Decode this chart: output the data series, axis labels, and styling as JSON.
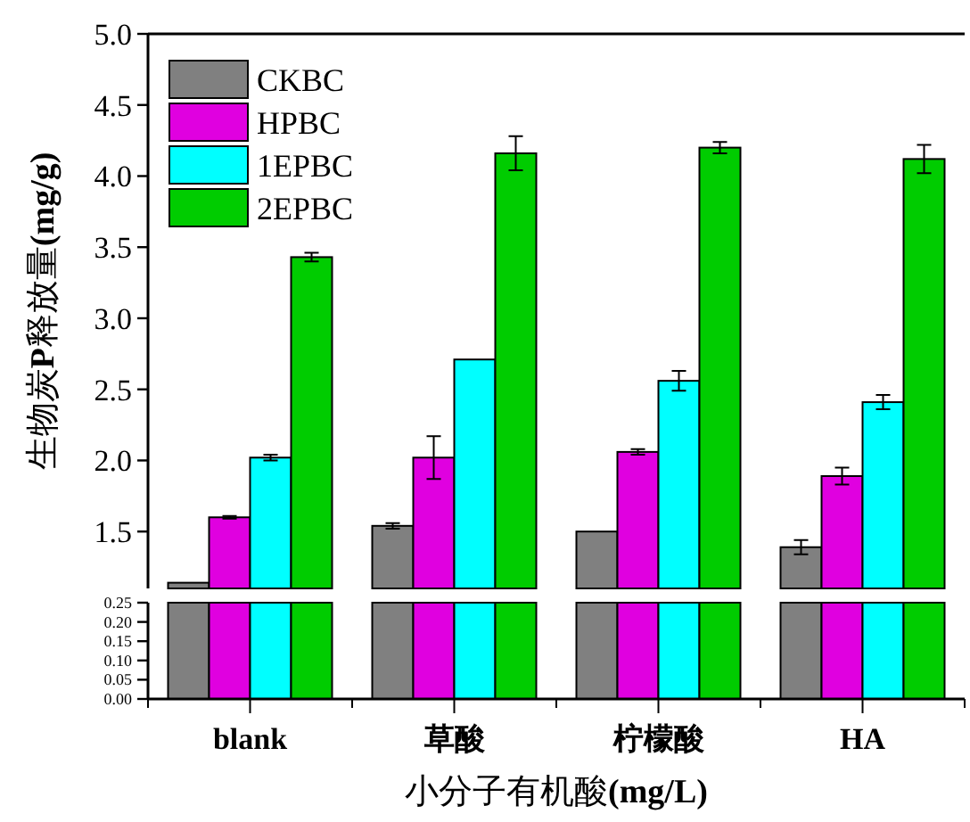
{
  "chart_data": [
    {
      "type": "bar",
      "categories": [
        null,
        null,
        null,
        null
      ],
      "ylabel": "生物炭**P**释放量**(mg/g)**",
      "ylim": [
        1.1,
        5.0
      ],
      "yticks": [
        1.5,
        {
          "value": 2,
          "label": "2.0"
        },
        2.5,
        {
          "value": 3,
          "label": "3.0"
        },
        3.5,
        {
          "value": 4,
          "label": "4.0"
        },
        4.5,
        {
          "value": 5,
          "label": "5.0"
        }
      ],
      "legend": "top left",
      "tick_labels": "y",
      "series": [
        {
          "name": "CKBC",
          "color": "#808080",
          "values": [
            1.14,
            1.54,
            1.5,
            1.39
          ],
          "errors": [
            null,
            0.02,
            null,
            0.05
          ]
        },
        {
          "name": "HPBC",
          "color": "#e000e0",
          "values": [
            1.6,
            2.02,
            2.06,
            1.89
          ],
          "errors": [
            0.01,
            0.15,
            0.02,
            0.06
          ]
        },
        {
          "name": "1EPBC",
          "color": "#00ffff",
          "values": [
            2.02,
            2.71,
            2.56,
            2.41
          ],
          "errors": [
            0.02,
            null,
            0.07,
            0.05
          ]
        },
        {
          "name": "2EPBC",
          "color": "#00cc00",
          "values": [
            3.43,
            4.16,
            4.2,
            4.12
          ],
          "errors": [
            0.03,
            0.12,
            0.04,
            0.1
          ]
        }
      ]
    },
    {
      "type": "bar",
      "categories": [
        "blank",
        "草酸",
        "柠檬酸",
        "HA"
      ],
      "xlabel": "小分子有机酸**(mg/L)**",
      "ylim": [
        0,
        0.25
      ],
      "yticks": [
        {
          "value": 0,
          "label": "0.00"
        },
        0.05,
        {
          "value": 0.1,
          "label": "0.10"
        },
        0.15,
        {
          "value": 0.2,
          "label": "0.20"
        },
        0.25
      ],
      "series": [
        {
          "color": "#808080",
          "values": [
            0.25,
            0.25,
            0.25,
            0.25
          ]
        },
        {
          "color": "#e000e0",
          "values": [
            0.25,
            0.25,
            0.25,
            0.25
          ]
        },
        {
          "color": "#00ffff",
          "values": [
            0.25,
            0.25,
            0.25,
            0.25
          ]
        },
        {
          "color": "#00cc00",
          "values": [
            0.25,
            0.25,
            0.25,
            0.25
          ]
        }
      ]
    }
  ]
}
